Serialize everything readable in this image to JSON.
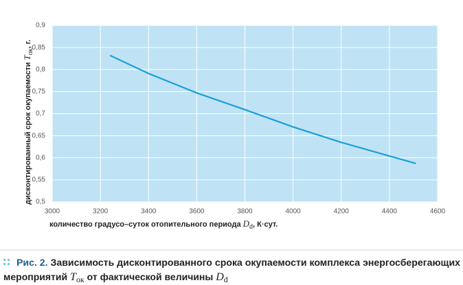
{
  "chart_data": {
    "type": "line",
    "x": [
      3240,
      3400,
      3600,
      3800,
      4000,
      4200,
      4400,
      4510
    ],
    "values": [
      0.832,
      0.791,
      0.747,
      0.709,
      0.67,
      0.635,
      0.604,
      0.587
    ],
    "color": "#1a9fd6",
    "xlim": [
      3000,
      4600
    ],
    "xticks": [
      3000,
      3200,
      3400,
      3600,
      3800,
      4000,
      4200,
      4400,
      4600
    ],
    "ylim": [
      0.5,
      0.9
    ],
    "yticks": [
      {
        "value": 0.5,
        "label": "0,5"
      },
      {
        "value": 0.55,
        "label": "0,55"
      },
      {
        "value": 0.6,
        "label": "0,6"
      },
      {
        "value": 0.65,
        "label": "0,65"
      },
      {
        "value": 0.7,
        "label": "0,7"
      },
      {
        "value": 0.75,
        "label": "0,75"
      },
      {
        "value": 0.8,
        "label": "0,8"
      },
      {
        "value": 0.85,
        "label": "0,85"
      },
      {
        "value": 0.9,
        "label": "0,9"
      }
    ],
    "grid": true,
    "x_label": {
      "text": "количество градусо–суток отопительного периода ",
      "symbol": "D",
      "sub": "d",
      "unit": ", К·сут."
    },
    "y_label": {
      "text": "дисконтированный срок окупаемости ",
      "symbol": "T",
      "sub": "ок",
      "unit": ", г."
    }
  },
  "caption": {
    "number": "Рис. 2.",
    "line1": " Зависимость дисконтированного срока окупаемости комплекса энергосберегающих",
    "line2": "мероприятий ",
    "symbol1": "T",
    "sub1": "ок",
    "line2b": " от фактической величины ",
    "symbol2": "D",
    "sub2": "d"
  }
}
